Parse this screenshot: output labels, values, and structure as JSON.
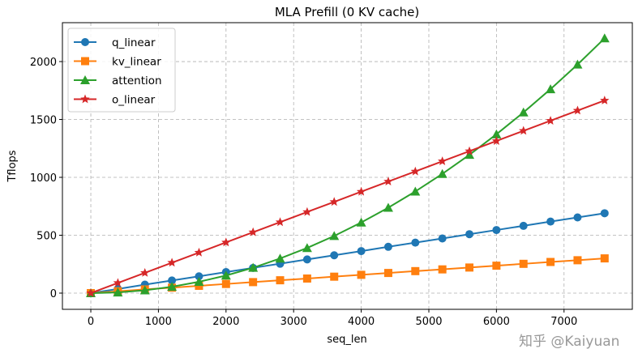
{
  "chart_data": {
    "type": "line",
    "title": "MLA Prefill (0 KV cache)",
    "xlabel": "seq_len",
    "ylabel": "Tflops",
    "xlim": [
      -420,
      8010
    ],
    "ylim": [
      -140,
      2336
    ],
    "xticks": [
      0,
      1000,
      2000,
      3000,
      4000,
      5000,
      6000,
      7000
    ],
    "yticks": [
      0,
      500,
      1000,
      1500,
      2000
    ],
    "grid": true,
    "legend": "top-left",
    "x": [
      0,
      400,
      800,
      1200,
      1600,
      2000,
      2400,
      2800,
      3200,
      3600,
      4000,
      4400,
      4800,
      5200,
      5600,
      6000,
      6400,
      6800,
      7200,
      7600
    ],
    "series": [
      {
        "name": "q_linear",
        "color": "#1f77b4",
        "marker": "circle",
        "values": [
          0,
          36,
          73,
          109,
          145,
          182,
          218,
          254,
          291,
          327,
          363,
          400,
          436,
          472,
          509,
          545,
          581,
          618,
          654,
          690
        ]
      },
      {
        "name": "kv_linear",
        "color": "#ff7f0e",
        "marker": "square",
        "values": [
          0,
          16,
          32,
          47,
          63,
          79,
          95,
          111,
          126,
          142,
          158,
          174,
          190,
          205,
          221,
          237,
          253,
          269,
          284,
          300
        ]
      },
      {
        "name": "attention",
        "color": "#2ca02c",
        "marker": "triangle",
        "values": [
          0,
          6,
          24,
          55,
          98,
          152,
          219,
          299,
          390,
          494,
          610,
          738,
          878,
          1030,
          1195,
          1372,
          1561,
          1762,
          1975,
          2201
        ]
      },
      {
        "name": "o_linear",
        "color": "#d62728",
        "marker": "star",
        "values": [
          0,
          88,
          175,
          263,
          350,
          438,
          526,
          613,
          701,
          788,
          876,
          964,
          1051,
          1139,
          1226,
          1314,
          1402,
          1489,
          1577,
          1664
        ]
      }
    ]
  },
  "watermark": "知乎 @Kaiyuan"
}
